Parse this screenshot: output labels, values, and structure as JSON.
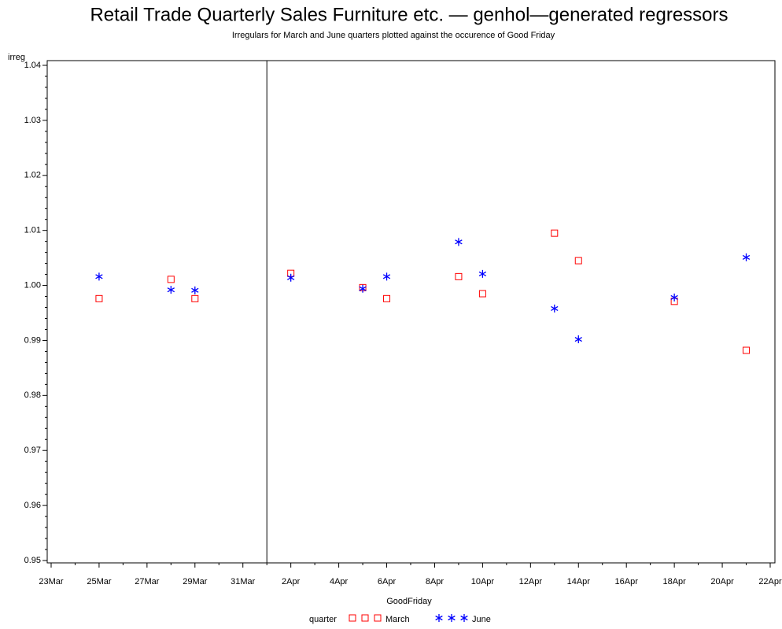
{
  "chart_data": {
    "type": "scatter",
    "title": "Retail Trade Quarterly Sales Furniture etc. — genhol—generated regressors",
    "subtitle": "Irregulars for March and June quarters plotted against the occurence of Good Friday",
    "y_label": "irreg",
    "x_label": "GoodFriday",
    "legend_title": "quarter",
    "xlim": [
      23,
      53
    ],
    "xticks": [
      {
        "value": 23,
        "label": "23Mar"
      },
      {
        "value": 25,
        "label": "25Mar"
      },
      {
        "value": 27,
        "label": "27Mar"
      },
      {
        "value": 29,
        "label": "29Mar"
      },
      {
        "value": 31,
        "label": "31Mar"
      },
      {
        "value": 33,
        "label": "2Apr"
      },
      {
        "value": 35,
        "label": "4Apr"
      },
      {
        "value": 37,
        "label": "6Apr"
      },
      {
        "value": 39,
        "label": "8Apr"
      },
      {
        "value": 41,
        "label": "10Apr"
      },
      {
        "value": 43,
        "label": "12Apr"
      },
      {
        "value": 45,
        "label": "14Apr"
      },
      {
        "value": 47,
        "label": "16Apr"
      },
      {
        "value": 49,
        "label": "18Apr"
      },
      {
        "value": 51,
        "label": "20Apr"
      },
      {
        "value": 53,
        "label": "22Apr"
      }
    ],
    "ylim": [
      0.95,
      1.04
    ],
    "yticks": [
      {
        "value": 0.95,
        "label": "0.95"
      },
      {
        "value": 0.96,
        "label": "0.96"
      },
      {
        "value": 0.97,
        "label": "0.97"
      },
      {
        "value": 0.98,
        "label": "0.98"
      },
      {
        "value": 0.99,
        "label": "0.99"
      },
      {
        "value": 1.0,
        "label": "1.00"
      },
      {
        "value": 1.01,
        "label": "1.01"
      },
      {
        "value": 1.02,
        "label": "1.02"
      },
      {
        "value": 1.03,
        "label": "1.03"
      },
      {
        "value": 1.04,
        "label": "1.04"
      }
    ],
    "refline_x": 32,
    "series": [
      {
        "name": "March",
        "color": "#ff0000",
        "marker": "square",
        "x": [
          25,
          28,
          29,
          33,
          36,
          37,
          40,
          41,
          44,
          45,
          49,
          52
        ],
        "values": [
          0.9976,
          1.0011,
          0.9976,
          1.0022,
          0.9996,
          0.9976,
          1.0016,
          0.9985,
          1.0095,
          1.0045,
          0.9971,
          0.9882
        ]
      },
      {
        "name": "June",
        "color": "#0000ff",
        "marker": "star",
        "x": [
          25,
          28,
          29,
          33,
          36,
          37,
          40,
          41,
          44,
          45,
          49,
          52
        ],
        "values": [
          1.0016,
          0.9992,
          0.9991,
          1.0014,
          0.9994,
          1.0016,
          1.0079,
          1.0021,
          0.9958,
          0.9902,
          0.9978,
          1.0051
        ]
      }
    ]
  }
}
